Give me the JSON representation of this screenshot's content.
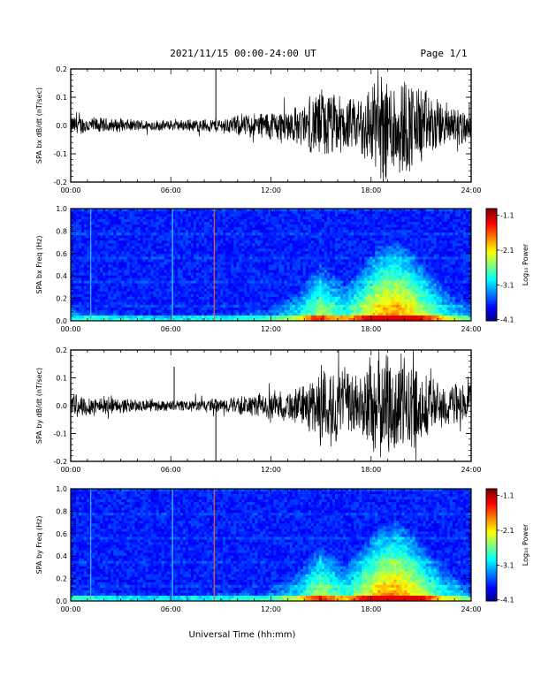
{
  "header": {
    "title": "2021/11/15  00:00-24:00 UT",
    "page": "Page 1/1"
  },
  "x_axis": {
    "label": "Universal Time (hh:mm)",
    "ticks": [
      "00:00",
      "06:00",
      "12:00",
      "18:00",
      "24:00"
    ]
  },
  "colorbar": {
    "label": "Log₁₀ Power",
    "ticks": [
      "-1.1",
      "-2.1",
      "-3.1",
      "-4.1"
    ]
  },
  "chart_data": [
    {
      "type": "line",
      "ylabel": "SPA bx dB/dt (nT/sec)",
      "xlim": [
        0,
        24
      ],
      "ylim": [
        -0.2,
        0.2
      ],
      "y_ticks": [
        "0.2",
        "0.1",
        "0.0",
        "-0.1",
        "-0.2"
      ],
      "y_tick_values": [
        0.2,
        0.1,
        0.0,
        -0.1,
        -0.2
      ],
      "envelope": {
        "hours": [
          0,
          3,
          6,
          9,
          12,
          14,
          15,
          16,
          17,
          18,
          19,
          20,
          21,
          22,
          24
        ],
        "amplitude": [
          0.04,
          0.025,
          0.02,
          0.03,
          0.06,
          0.08,
          0.15,
          0.12,
          0.1,
          0.18,
          0.22,
          0.2,
          0.16,
          0.1,
          0.07
        ]
      },
      "spikes": [
        {
          "hour": 8.7,
          "value": 0.2
        }
      ]
    },
    {
      "type": "heatmap",
      "ylabel": "SPA bx Freq (Hz)",
      "xlim": [
        0,
        24
      ],
      "ylim": [
        0,
        1.0
      ],
      "y_ticks": [
        "1.0",
        "0.8",
        "0.6",
        "0.4",
        "0.2",
        "0.0"
      ],
      "y_tick_values": [
        1.0,
        0.8,
        0.6,
        0.4,
        0.2,
        0.0
      ],
      "zlim": [
        -4.1,
        -1.1
      ],
      "vertical_lines": [
        {
          "hour": 1.2,
          "color": "#35b7ff"
        },
        {
          "hour": 6.1,
          "color": "#35d0ff"
        },
        {
          "hour": 8.6,
          "color": "#ff5a2a"
        }
      ]
    },
    {
      "type": "line",
      "ylabel": "SPA by dB/dt (nT/sec)",
      "xlim": [
        0,
        24
      ],
      "ylim": [
        -0.2,
        0.2
      ],
      "y_ticks": [
        "0.2",
        "0.1",
        "0.0",
        "-0.1",
        "-0.2"
      ],
      "y_tick_values": [
        0.2,
        0.1,
        0.0,
        -0.1,
        -0.2
      ],
      "envelope": {
        "hours": [
          0,
          3,
          6,
          9,
          12,
          14,
          15,
          16,
          17,
          18,
          19,
          20,
          21,
          22,
          24
        ],
        "amplitude": [
          0.05,
          0.03,
          0.02,
          0.03,
          0.05,
          0.08,
          0.17,
          0.15,
          0.12,
          0.2,
          0.22,
          0.2,
          0.15,
          0.1,
          0.08
        ]
      },
      "spikes": [
        {
          "hour": 6.2,
          "value": 0.14
        },
        {
          "hour": 8.7,
          "value": -0.2
        }
      ]
    },
    {
      "type": "heatmap",
      "ylabel": "SPA by Freq (Hz)",
      "xlim": [
        0,
        24
      ],
      "ylim": [
        0,
        1.0
      ],
      "y_ticks": [
        "1.0",
        "0.8",
        "0.6",
        "0.4",
        "0.2",
        "0.0"
      ],
      "y_tick_values": [
        1.0,
        0.8,
        0.6,
        0.4,
        0.2,
        0.0
      ],
      "zlim": [
        -4.1,
        -1.1
      ],
      "vertical_lines": [
        {
          "hour": 1.2,
          "color": "#35b7ff"
        },
        {
          "hour": 6.1,
          "color": "#35d0ff"
        },
        {
          "hour": 8.6,
          "color": "#ff5a2a"
        }
      ]
    }
  ]
}
